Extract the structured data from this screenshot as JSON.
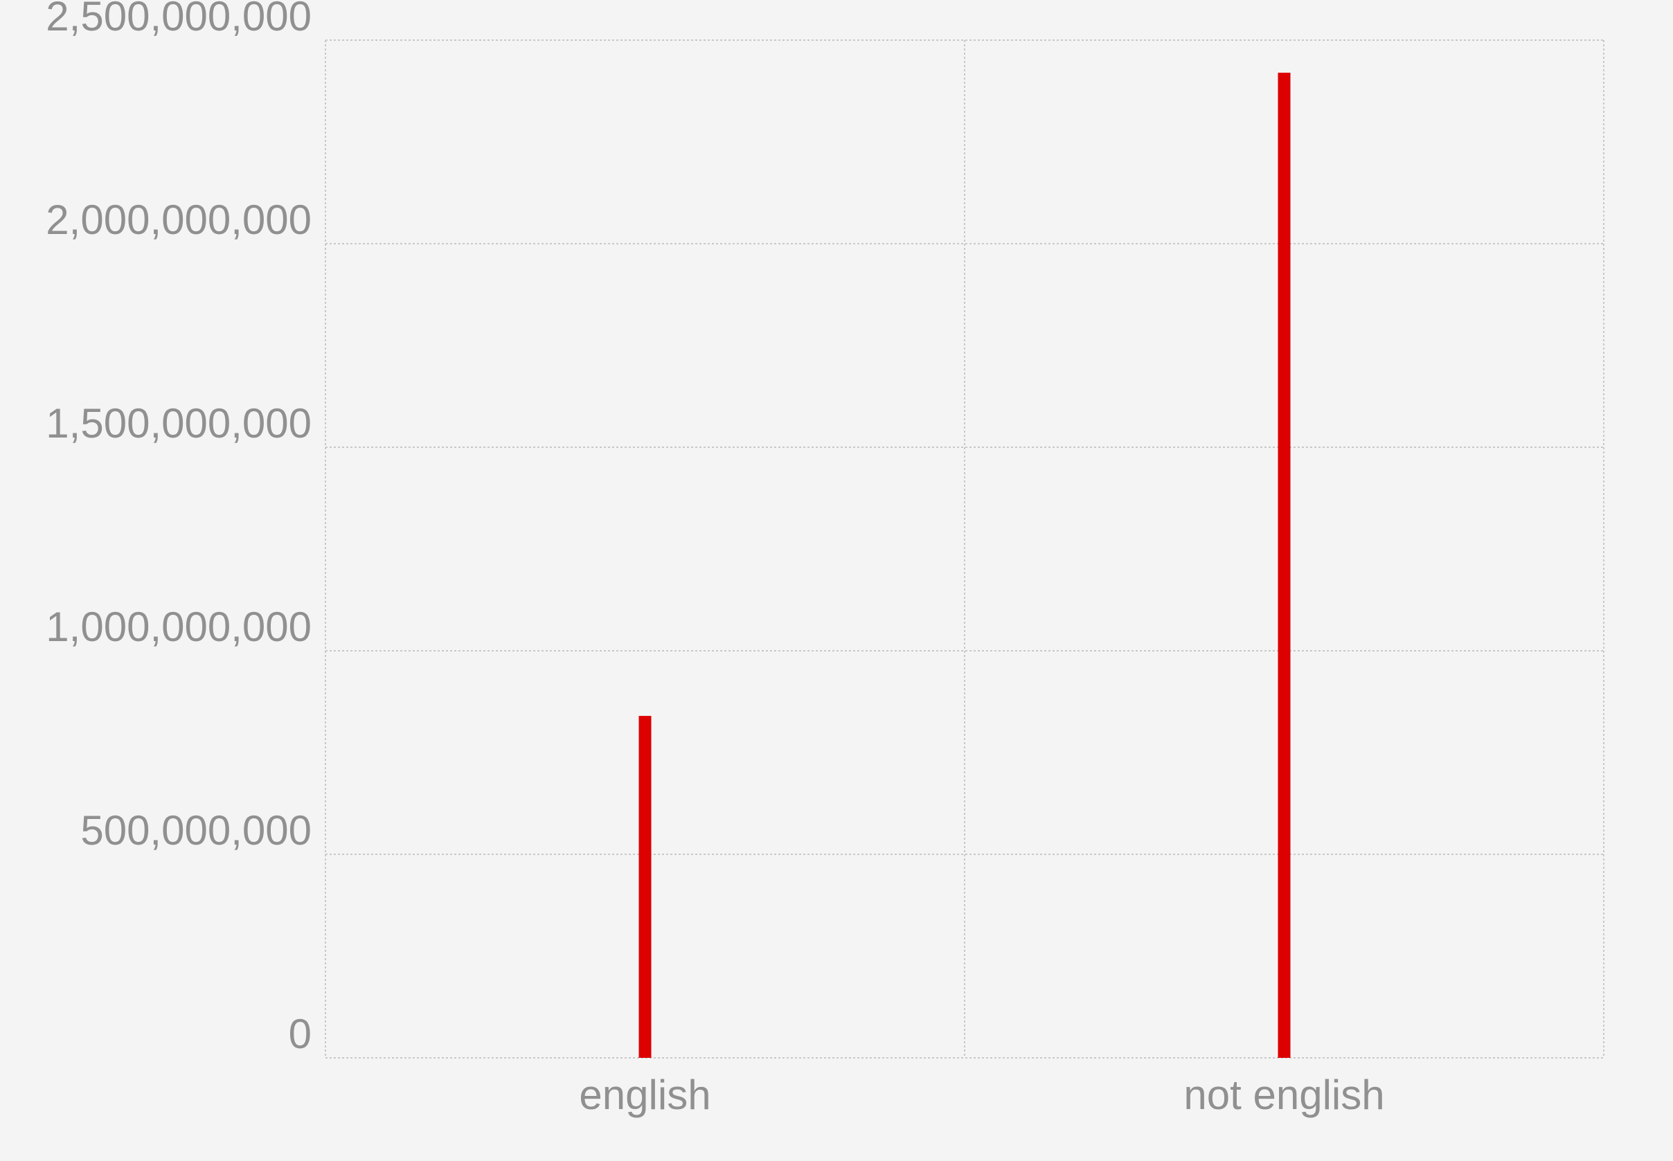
{
  "chart_data": {
    "type": "bar",
    "title": "",
    "xlabel": "",
    "ylabel": "",
    "categories": [
      "english",
      "not english"
    ],
    "values": [
      840000000,
      2420000000
    ],
    "ylim": [
      0,
      2500000000
    ],
    "yticks": [
      0,
      500000000,
      1000000000,
      1500000000,
      2000000000,
      2500000000
    ],
    "ytick_labels": [
      "0",
      "500,000,000",
      "1,000,000,000",
      "1,500,000,000",
      "2,000,000,000",
      "2,500,000,000"
    ],
    "grid": true,
    "legend": "none",
    "colors": {
      "bar": "#dd0000",
      "background": "#f4f4f4",
      "grid": "#c8c8c8",
      "tick_text": "#909090"
    }
  }
}
